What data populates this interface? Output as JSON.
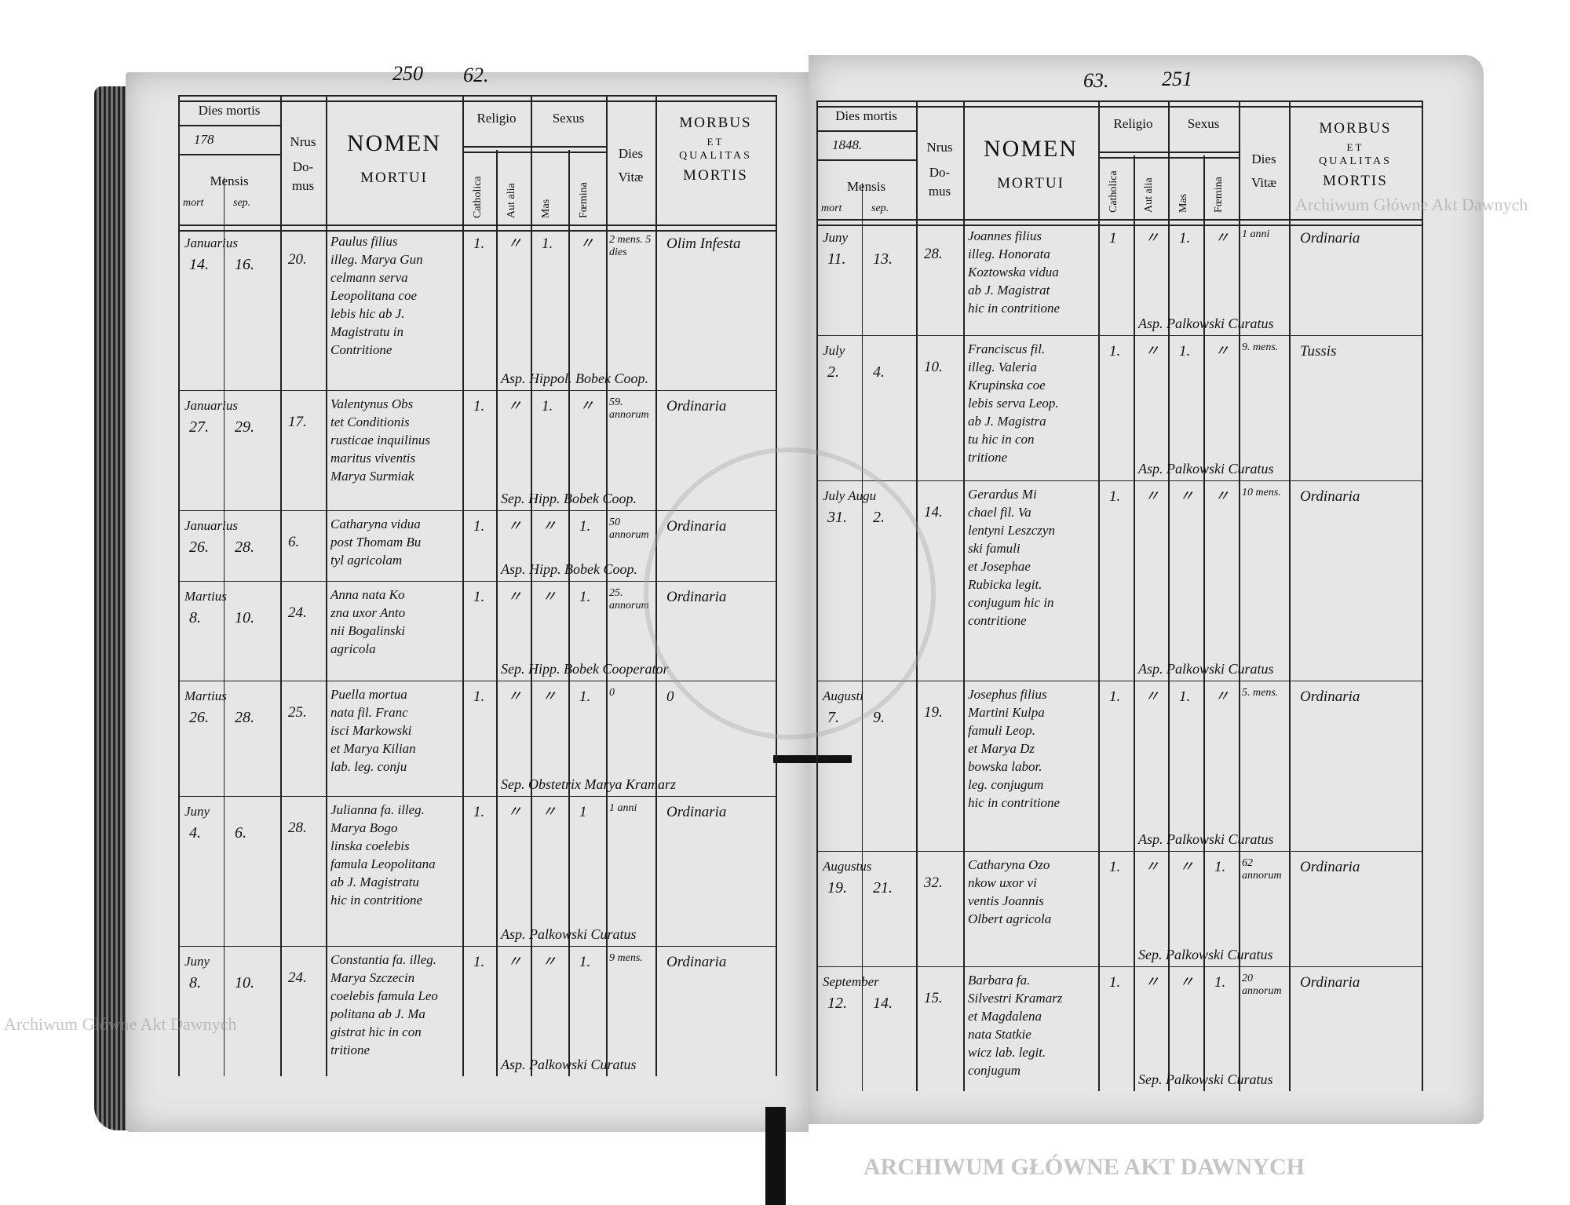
{
  "document_type": "parish death register",
  "watermark": "Archiwum Główne Akt Dawnych",
  "stamp_text": "ARCHIWUM GŁÓWNE AKT DAWNYCH",
  "left_page": {
    "folio": "62.",
    "stamp_number": "250",
    "year_label": "178",
    "entries": [
      {
        "month": "Januarius",
        "mort": "14.",
        "sep": "16.",
        "domus": "20.",
        "name": [
          "Paulus filius",
          "illeg. Marya Gun",
          "celmann serva",
          "Leopolitana coe",
          "lebis hic ab J.",
          "Magistratu in",
          "Contritione"
        ],
        "catholica": "1.",
        "aut_alia": "〃",
        "mas": "1.",
        "foemina": "〃",
        "vitae": "2 mens. 5 dies",
        "morbus": "Olim Infesta",
        "signature": "Asp. Hippol. Bobek Coop."
      },
      {
        "month": "Januarius",
        "mort": "27.",
        "sep": "29.",
        "domus": "17.",
        "name": [
          "Valentynus Obs",
          "tet Conditionis",
          "rusticae inquilinus",
          "maritus viventis",
          "Marya Surmiak"
        ],
        "catholica": "1.",
        "aut_alia": "〃",
        "mas": "1.",
        "foemina": "〃",
        "vitae": "59. annorum",
        "morbus": "Ordinaria",
        "signature": "Sep. Hipp. Bobek Coop."
      },
      {
        "month": "Januarius",
        "mort": "26.",
        "sep": "28.",
        "domus": "6.",
        "name": [
          "Catharyna vidua",
          "post Thomam Bu",
          "tyl agricolam"
        ],
        "catholica": "1.",
        "aut_alia": "〃",
        "mas": "〃",
        "foemina": "1.",
        "vitae": "50 annorum",
        "morbus": "Ordinaria",
        "signature": "Asp. Hipp. Bobek Coop."
      },
      {
        "month": "Martius",
        "mort": "8.",
        "sep": "10.",
        "domus": "24.",
        "name": [
          "Anna nata Ko",
          "zna uxor Anto",
          "nii Bogalinski",
          "agricola"
        ],
        "catholica": "1.",
        "aut_alia": "〃",
        "mas": "〃",
        "foemina": "1.",
        "vitae": "25. annorum",
        "morbus": "Ordinaria",
        "signature": "Sep. Hipp. Bobek Cooperator"
      },
      {
        "month": "Martius",
        "mort": "26.",
        "sep": "28.",
        "domus": "25.",
        "name": [
          "Puella mortua",
          "nata fil. Franc",
          "isci Markowski",
          "et Marya Kilian",
          "lab. leg. conju"
        ],
        "catholica": "1.",
        "aut_alia": "〃",
        "mas": "〃",
        "foemina": "1.",
        "vitae": "0",
        "morbus": "0",
        "signature": "Sep. Obstetrix Marya Kramarz"
      },
      {
        "month": "Juny",
        "mort": "4.",
        "sep": "6.",
        "domus": "28.",
        "name": [
          "Julianna fa. illeg.",
          "Marya Bogo",
          "linska coelebis",
          "famula Leopolitana",
          "ab J. Magistratu",
          "hic in contritione"
        ],
        "catholica": "1.",
        "aut_alia": "〃",
        "mas": "〃",
        "foemina": "1",
        "vitae": "1 anni",
        "morbus": "Ordinaria",
        "signature": "Asp. Palkowski Curatus"
      },
      {
        "month": "Juny",
        "mort": "8.",
        "sep": "10.",
        "domus": "24.",
        "name": [
          "Constantia fa. illeg.",
          "Marya Szczecin",
          "coelebis famula Leo",
          "politana ab J. Ma",
          "gistrat hic in con",
          "tritione"
        ],
        "catholica": "1.",
        "aut_alia": "〃",
        "mas": "〃",
        "foemina": "1.",
        "vitae": "9 mens.",
        "morbus": "Ordinaria",
        "signature": "Asp. Palkowski Curatus"
      }
    ]
  },
  "right_page": {
    "folio": "63.",
    "stamp_number": "251",
    "year_label": "1848.",
    "entries": [
      {
        "month": "Juny",
        "mort": "11.",
        "sep": "13.",
        "domus": "28.",
        "name": [
          "Joannes filius",
          "illeg. Honorata",
          "Koztowska vidua",
          "ab J. Magistrat",
          "hic in contritione"
        ],
        "catholica": "1",
        "aut_alia": "〃",
        "mas": "1.",
        "foemina": "〃",
        "vitae": "1 anni",
        "morbus": "Ordinaria",
        "signature": "Asp. Palkowski Curatus"
      },
      {
        "month": "July",
        "mort": "2.",
        "sep": "4.",
        "domus": "10.",
        "name": [
          "Franciscus fil.",
          "illeg. Valeria",
          "Krupinska coe",
          "lebis serva Leop.",
          "ab J. Magistra",
          "tu hic in con",
          "tritione"
        ],
        "catholica": "1.",
        "aut_alia": "〃",
        "mas": "1.",
        "foemina": "〃",
        "vitae": "9. mens.",
        "morbus": "Tussis",
        "signature": "Asp. Palkowski Curatus"
      },
      {
        "month": "July Augu",
        "mort": "31.",
        "sep": "2.",
        "domus": "14.",
        "name": [
          "Gerardus Mi",
          "chael fil. Va",
          "lentyni Leszczyn",
          "ski famuli",
          "et Josephae",
          "Rubicka legit.",
          "conjugum hic in",
          "contritione"
        ],
        "catholica": "1.",
        "aut_alia": "〃",
        "mas": "〃",
        "foemina": "〃",
        "vitae": "10 mens.",
        "morbus": "Ordinaria",
        "signature": "Asp. Palkowski Curatus"
      },
      {
        "month": "Augusti",
        "mort": "7.",
        "sep": "9.",
        "domus": "19.",
        "name": [
          "Josephus filius",
          "Martini Kulpa",
          "famuli Leop.",
          "et Marya Dz",
          "bowska labor.",
          "leg. conjugum",
          "hic in contritione"
        ],
        "catholica": "1.",
        "aut_alia": "〃",
        "mas": "1.",
        "foemina": "〃",
        "vitae": "5. mens.",
        "morbus": "Ordinaria",
        "signature": "Asp. Palkowski Curatus"
      },
      {
        "month": "Augustus",
        "mort": "19.",
        "sep": "21.",
        "domus": "32.",
        "name": [
          "Catharyna Ozo",
          "nkow uxor vi",
          "ventis Joannis",
          "Olbert agricola"
        ],
        "catholica": "1.",
        "aut_alia": "〃",
        "mas": "〃",
        "foemina": "1.",
        "vitae": "62 annorum",
        "morbus": "Ordinaria",
        "signature": "Sep. Palkowski Curatus"
      },
      {
        "month": "September",
        "mort": "12.",
        "sep": "14.",
        "domus": "15.",
        "name": [
          "Barbara fa.",
          "Silvestri Kramarz",
          "et Magdalena",
          "nata Statkie",
          "wicz lab. legit.",
          "conjugum"
        ],
        "catholica": "1.",
        "aut_alia": "〃",
        "mas": "〃",
        "foemina": "1.",
        "vitae": "20 annorum",
        "morbus": "Ordinaria",
        "signature": "Sep. Palkowski Curatus"
      }
    ]
  },
  "header": {
    "dies_mortis": "Dies mortis",
    "mensis": "Mensis",
    "mort": "mort",
    "sep": "sep.",
    "nrus": "Nrus",
    "domus": "Do-\nmus",
    "nomen": "NOMEN",
    "mortui": "MORTUI",
    "religio": "Religio",
    "sexus": "Sexus",
    "catholica": "Catholica",
    "aut_alia": "Aut alia",
    "mas": "Mas",
    "foemina": "Fœmina",
    "dies_vitae": "Dies\nVitæ",
    "morbus": "MORBUS",
    "et": "ET",
    "qualitas": "QUALITAS",
    "mortis": "MORTIS"
  }
}
